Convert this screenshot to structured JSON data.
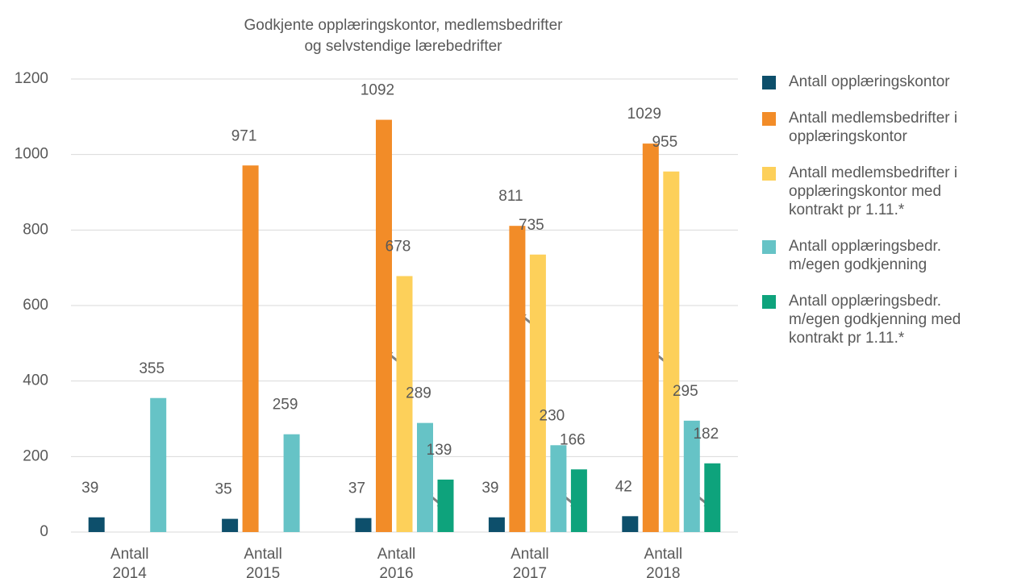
{
  "chart_data": {
    "type": "bar",
    "title": [
      "Godkjente opplæringskontor, medlemsbedrifter",
      "og selvstendige lærebedrifter"
    ],
    "categories": [
      "Antall 2014",
      "Antall 2015",
      "Antall 2016",
      "Antall 2017",
      "Antall 2018"
    ],
    "series": [
      {
        "name": "Antall opplæringskontor",
        "color": "#0d4f6b",
        "values": [
          39,
          35,
          37,
          39,
          42
        ]
      },
      {
        "name": "Antall medlemsbedrifter i opplæringskontor",
        "color": "#f28c28",
        "values": [
          null,
          971,
          1092,
          811,
          1029
        ]
      },
      {
        "name": "Antall medlemsbedrifter i opplæringskontor med kontrakt pr 1.11.*",
        "color": "#fdd05a",
        "values": [
          null,
          null,
          678,
          735,
          955
        ]
      },
      {
        "name": "Antall opplæringsbedr. m/egen godkjenning",
        "color": "#66c3c6",
        "values": [
          355,
          259,
          289,
          230,
          295
        ]
      },
      {
        "name": "Antall opplæringsbedr. m/egen godkjenning med kontrakt pr 1.11.*",
        "color": "#0ea37c",
        "values": [
          null,
          null,
          139,
          166,
          182
        ]
      }
    ],
    "ylim": [
      0,
      1200
    ],
    "yticks": [
      0,
      200,
      400,
      600,
      800,
      1000,
      1200
    ],
    "grid": true,
    "legend": "right"
  }
}
